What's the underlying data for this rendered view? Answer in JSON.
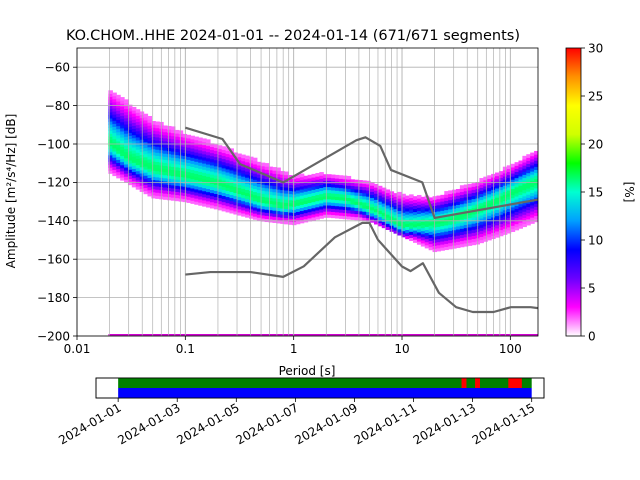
{
  "chart_data": [
    {
      "type": "heatmap",
      "title": "KO.CHOM..HHE   2024-01-01 -- 2024-01-14  (671/671 segments)",
      "xlabel": "Period [s]",
      "ylabel": "Amplitude [m²/s⁴/Hz] [dB]",
      "x_scale": "log",
      "xlim": [
        0.01,
        180
      ],
      "ylim": [
        -200,
        -50
      ],
      "x_ticks": [
        0.01,
        0.1,
        1,
        10,
        100
      ],
      "x_tick_labels": [
        "0.01",
        "0.1",
        "1",
        "10",
        "100"
      ],
      "y_ticks": [
        -200,
        -180,
        -160,
        -140,
        -120,
        -100,
        -80,
        -60
      ],
      "y_tick_labels": [
        "−200",
        "−180",
        "−160",
        "−140",
        "−120",
        "−100",
        "−80",
        "−60"
      ],
      "grid": true,
      "colorbar": {
        "label": "[%]",
        "range": [
          0,
          30
        ],
        "ticks": [
          0,
          5,
          10,
          15,
          20,
          25,
          30
        ],
        "tick_labels": [
          "0",
          "5",
          "10",
          "15",
          "20",
          "25",
          "30"
        ],
        "colormap": [
          "#ffffff",
          "#ff00ff",
          "#6a00ff",
          "#0000ff",
          "#00a0ff",
          "#00ffd0",
          "#00ff00",
          "#d0ff00",
          "#ffff00",
          "#ff9000",
          "#ff0000"
        ]
      },
      "mode_curve": {
        "period": [
          0.02,
          0.03,
          0.05,
          0.08,
          0.12,
          0.2,
          0.3,
          0.5,
          0.8,
          1.2,
          2,
          3,
          4.5,
          6,
          8,
          10,
          13,
          18,
          25,
          40,
          70,
          120,
          180
        ],
        "db": [
          -100,
          -108,
          -113,
          -116,
          -118,
          -121,
          -125,
          -130,
          -133,
          -131,
          -128,
          -129,
          -133,
          -136,
          -140,
          -143,
          -143,
          -142,
          -141,
          -137,
          -131,
          -124,
          -120
        ]
      },
      "spread_upper": {
        "period": [
          0.02,
          0.05,
          0.1,
          0.2,
          0.5,
          1,
          2,
          5,
          10,
          20,
          50,
          100,
          180
        ],
        "db": [
          -72,
          -88,
          -95,
          -101,
          -110,
          -117,
          -116,
          -120,
          -127,
          -128,
          -120,
          -112,
          -103
        ]
      },
      "spread_lower": {
        "period": [
          0.02,
          0.05,
          0.1,
          0.2,
          0.5,
          1,
          2,
          5,
          10,
          20,
          50,
          100,
          180
        ],
        "db": [
          -115,
          -128,
          -130,
          -134,
          -140,
          -142,
          -138,
          -140,
          -148,
          -156,
          -152,
          -146,
          -140
        ]
      },
      "noise_models": [
        {
          "period": [
            0.1,
            0.17,
            0.4,
            0.8,
            1.24,
            2.4,
            4.3,
            5,
            6,
            10,
            12,
            15.6,
            21.9,
            31.6,
            45,
            70,
            101,
            154,
            180
          ],
          "db": [
            -168,
            -166.7,
            -166.7,
            -169.2,
            -163.7,
            -148.6,
            -141.1,
            -141.1,
            -149.9,
            -163.8,
            -166.2,
            -162.1,
            -177.5,
            -185,
            -187.5,
            -187.5,
            -185,
            -185,
            -185.5
          ]
        },
        {
          "period": [
            0.1,
            0.22,
            0.32,
            0.8,
            3.8,
            4.6,
            6.3,
            7.9,
            15.4,
            20,
            354.8
          ],
          "db": [
            -91.5,
            -97.4,
            -110.5,
            -120,
            -98,
            -96.5,
            -101,
            -113.5,
            -120,
            -138.5,
            -126
          ]
        }
      ],
      "baseline_db": -200
    },
    {
      "type": "timeline",
      "x_tick_labels": [
        "2024-01-01",
        "2024-01-03",
        "2024-01-05",
        "2024-01-07",
        "2024-01-09",
        "2024-01-11",
        "2024-01-13",
        "2024-01-15"
      ],
      "data_start": "2024-01-01",
      "data_end": "2024-01-15",
      "range_start": "2023-12-31 06:00",
      "range_end": "2024-01-15 10:00",
      "rows": [
        {
          "color": "#008000",
          "span": [
            "2024-01-01",
            "2024-01-15"
          ]
        },
        {
          "color": "#0000ff",
          "span": [
            "2024-01-01",
            "2024-01-15"
          ]
        }
      ],
      "marks": [
        {
          "color": "#ff0000",
          "span": [
            "2024-01-12 15:00",
            "2024-01-12 19:00"
          ]
        },
        {
          "color": "#ff0000",
          "span": [
            "2024-01-13 02:00",
            "2024-01-13 06:00"
          ]
        },
        {
          "color": "#ff0000",
          "span": [
            "2024-01-14 05:00",
            "2024-01-14 16:00"
          ]
        }
      ]
    }
  ]
}
